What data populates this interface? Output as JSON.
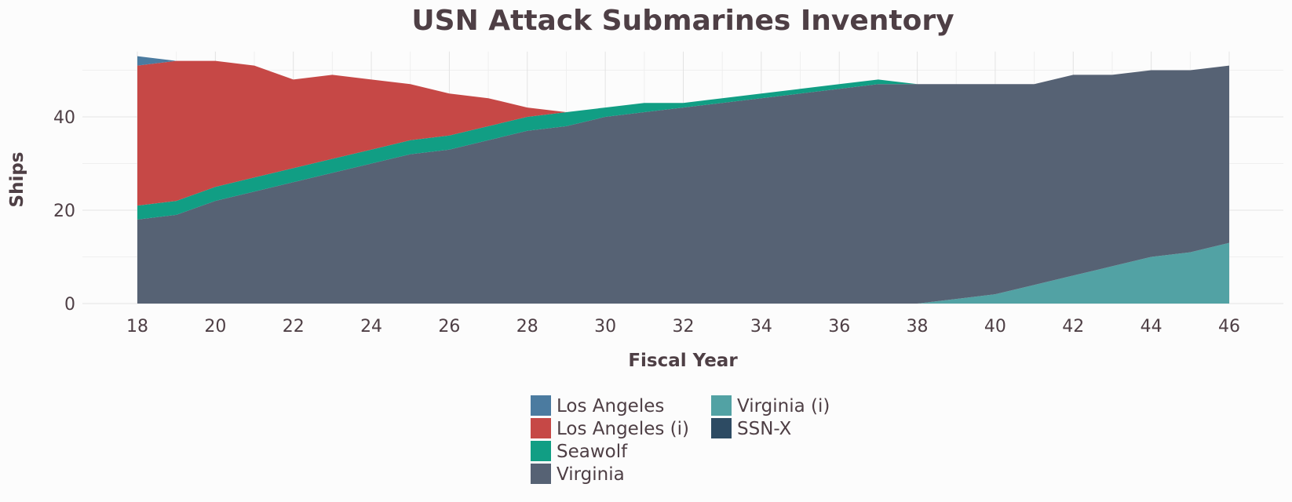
{
  "chart_data": {
    "type": "area",
    "stacked": true,
    "title": "USN Attack Submarines Inventory",
    "xlabel": "Fiscal Year",
    "ylabel": "Ships",
    "xlim": [
      18,
      46
    ],
    "ylim": [
      0,
      54
    ],
    "x_ticks": [
      18,
      20,
      22,
      24,
      26,
      28,
      30,
      32,
      34,
      36,
      38,
      40,
      42,
      44,
      46
    ],
    "y_ticks": [
      0,
      20,
      40
    ],
    "grid": true,
    "legend_position": "bottom",
    "x": [
      18,
      19,
      20,
      21,
      22,
      23,
      24,
      25,
      26,
      27,
      28,
      29,
      30,
      31,
      32,
      33,
      34,
      35,
      36,
      37,
      38,
      39,
      40,
      41,
      42,
      43,
      44,
      45,
      46
    ],
    "series": [
      {
        "name": "Virginia (i)",
        "color": "#52a2a4",
        "values": [
          0,
          0,
          0,
          0,
          0,
          0,
          0,
          0,
          0,
          0,
          0,
          0,
          0,
          0,
          0,
          0,
          0,
          0,
          0,
          0,
          0,
          1,
          2,
          4,
          6,
          8,
          10,
          11,
          13
        ]
      },
      {
        "name": "Virginia",
        "color": "#566274",
        "values": [
          18,
          19,
          22,
          24,
          26,
          28,
          30,
          32,
          33,
          35,
          37,
          38,
          40,
          41,
          42,
          43,
          44,
          45,
          46,
          47,
          47,
          46,
          45,
          43,
          43,
          41,
          40,
          39,
          38
        ]
      },
      {
        "name": "Seawolf",
        "color": "#119e84",
        "values": [
          3,
          3,
          3,
          3,
          3,
          3,
          3,
          3,
          3,
          3,
          3,
          3,
          2,
          2,
          1,
          1,
          1,
          1,
          1,
          1,
          0,
          0,
          0,
          0,
          0,
          0,
          0,
          0,
          0
        ]
      },
      {
        "name": "Los Angeles (i)",
        "color": "#c64846",
        "values": [
          30,
          30,
          27,
          24,
          19,
          18,
          15,
          12,
          9,
          6,
          2,
          0,
          0,
          0,
          0,
          0,
          0,
          0,
          0,
          0,
          0,
          0,
          0,
          0,
          0,
          0,
          0,
          0,
          0
        ]
      },
      {
        "name": "Los Angeles",
        "color": "#4b7ba0",
        "values": [
          2,
          0,
          0,
          0,
          0,
          0,
          0,
          0,
          0,
          0,
          0,
          0,
          0,
          0,
          0,
          0,
          0,
          0,
          0,
          0,
          0,
          0,
          0,
          0,
          0,
          0,
          0,
          0,
          0
        ]
      },
      {
        "name": "SSN-X",
        "color": "#2d4b63",
        "values": [
          0,
          0,
          0,
          0,
          0,
          0,
          0,
          0,
          0,
          0,
          0,
          0,
          0,
          0,
          0,
          0,
          0,
          0,
          0,
          0,
          0,
          0,
          0,
          0,
          0,
          0,
          0,
          0,
          0
        ]
      }
    ],
    "legend": [
      {
        "name": "Los Angeles",
        "color": "#4b7ba0"
      },
      {
        "name": "Los Angeles (i)",
        "color": "#c64846"
      },
      {
        "name": "Seawolf",
        "color": "#119e84"
      },
      {
        "name": "Virginia",
        "color": "#566274"
      },
      {
        "name": "Virginia (i)",
        "color": "#52a2a4"
      },
      {
        "name": "SSN-X",
        "color": "#2d4b63"
      }
    ]
  }
}
